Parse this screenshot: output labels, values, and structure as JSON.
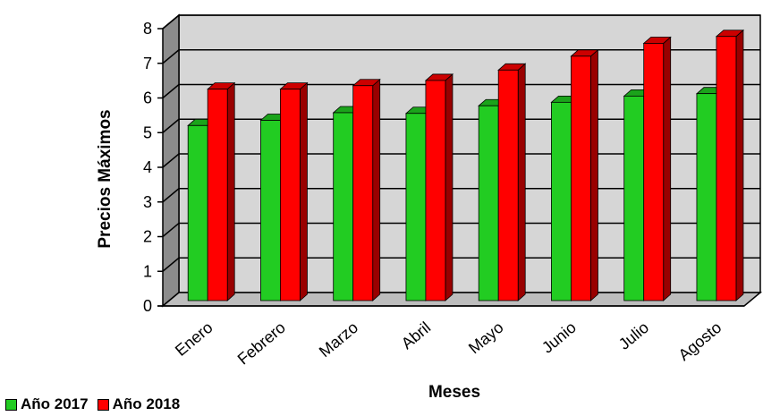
{
  "chart_data": {
    "type": "bar",
    "categories": [
      "Enero",
      "Febrero",
      "Marzo",
      "Abril",
      "Mayo",
      "Junio",
      "Julio",
      "Agosto"
    ],
    "series": [
      {
        "name": "Año 2017",
        "color": "#22cc22",
        "values": [
          5.05,
          5.2,
          5.42,
          5.4,
          5.62,
          5.72,
          5.9,
          5.97
        ]
      },
      {
        "name": "Año 2018",
        "color": "#ff0000",
        "values": [
          6.1,
          6.1,
          6.2,
          6.35,
          6.65,
          7.05,
          7.42,
          7.62
        ]
      }
    ],
    "xlabel": "Meses",
    "ylabel": "Precios Máximos",
    "ylim": [
      0,
      8
    ],
    "yticks": [
      "0",
      "1",
      "2",
      "3",
      "4",
      "5",
      "6",
      "7",
      "8"
    ],
    "grid": true,
    "style": "3d-column",
    "legend_position": "bottom-left"
  }
}
